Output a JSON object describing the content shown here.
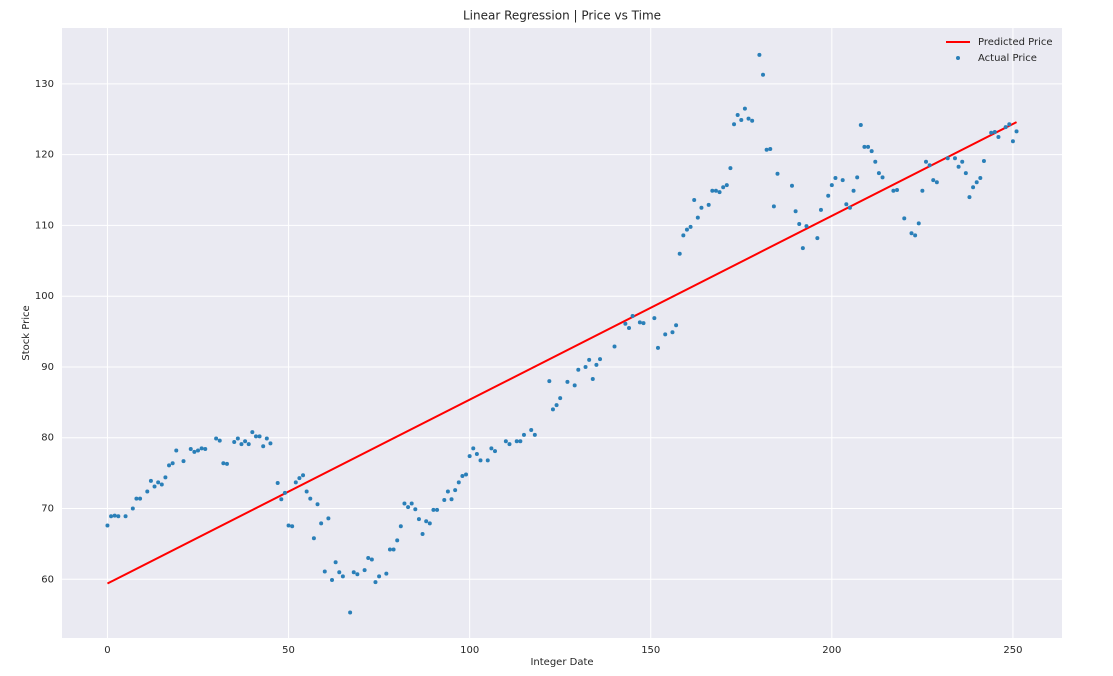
{
  "chart_data": {
    "type": "scatter",
    "title": "Linear Regression | Price vs Time",
    "x_label": "Integer Date",
    "y_label": "Stock Price",
    "xlim": [
      -12.55,
      263.55
    ],
    "ylim": [
      51.7,
      137.9
    ],
    "xticks": [
      0,
      50,
      100,
      150,
      200,
      250
    ],
    "yticks": [
      60,
      70,
      80,
      90,
      100,
      110,
      120,
      130
    ],
    "grid": true,
    "legend": "upper right",
    "series": [
      {
        "name": "Predicted Price",
        "type": "line",
        "color": "#ff0000",
        "x": [
          0,
          251
        ],
        "values": [
          59.4,
          124.6
        ]
      },
      {
        "name": "Actual Price",
        "type": "scatter",
        "color": "#2a7fb8",
        "x": [
          0,
          1,
          2,
          3,
          5,
          7,
          8,
          9,
          11,
          12,
          13,
          14,
          15,
          16,
          17,
          18,
          19,
          21,
          23,
          24,
          25,
          26,
          27,
          30,
          31,
          32,
          33,
          35,
          36,
          37,
          38,
          39,
          40,
          41,
          42,
          43,
          44,
          45,
          47,
          48,
          49,
          50,
          51,
          52,
          53,
          54,
          55,
          56,
          57,
          58,
          59,
          60,
          61,
          62,
          63,
          64,
          65,
          67,
          68,
          69,
          71,
          72,
          73,
          74,
          75,
          77,
          78,
          79,
          80,
          81,
          82,
          83,
          84,
          85,
          86,
          87,
          88,
          89,
          90,
          91,
          93,
          94,
          95,
          96,
          97,
          98,
          99,
          100,
          101,
          102,
          103,
          105,
          106,
          107,
          110,
          111,
          113,
          114,
          115,
          117,
          118,
          122,
          123,
          124,
          125,
          127,
          129,
          130,
          132,
          133,
          134,
          135,
          136,
          140,
          143,
          144,
          145,
          147,
          148,
          151,
          152,
          154,
          156,
          157,
          158,
          159,
          160,
          161,
          162,
          163,
          164,
          166,
          167,
          168,
          169,
          170,
          171,
          172,
          173,
          174,
          175,
          176,
          177,
          178,
          180,
          181,
          182,
          183,
          184,
          185,
          189,
          190,
          191,
          192,
          193,
          196,
          197,
          199,
          200,
          201,
          203,
          204,
          205,
          206,
          207,
          208,
          209,
          210,
          211,
          212,
          213,
          214,
          217,
          218,
          220,
          222,
          223,
          224,
          225,
          226,
          227,
          228,
          229,
          232,
          234,
          235,
          236,
          237,
          238,
          239,
          240,
          241,
          242,
          244,
          245,
          246,
          248,
          249,
          250,
          251
        ],
        "values": [
          67.6,
          68.9,
          69.0,
          68.9,
          68.9,
          70.0,
          71.4,
          71.4,
          72.4,
          73.9,
          73.1,
          73.7,
          73.4,
          74.4,
          76.1,
          76.4,
          78.2,
          76.7,
          78.4,
          78.0,
          78.2,
          78.5,
          78.4,
          79.9,
          79.6,
          76.4,
          76.3,
          79.4,
          79.9,
          79.1,
          79.5,
          79.1,
          80.8,
          80.2,
          80.2,
          78.8,
          79.9,
          79.2,
          73.6,
          71.3,
          72.2,
          67.6,
          67.5,
          73.7,
          74.3,
          74.7,
          72.4,
          71.4,
          65.8,
          70.6,
          67.9,
          61.1,
          68.6,
          59.9,
          62.4,
          61.0,
          60.4,
          55.3,
          61.0,
          60.7,
          61.3,
          63.0,
          62.8,
          59.6,
          60.4,
          60.8,
          64.2,
          64.2,
          65.5,
          67.5,
          70.7,
          70.2,
          70.7,
          69.9,
          68.5,
          66.4,
          68.2,
          67.9,
          69.8,
          69.8,
          71.2,
          72.4,
          71.3,
          72.6,
          73.7,
          74.6,
          74.8,
          77.4,
          78.5,
          77.7,
          76.8,
          76.8,
          78.5,
          78.1,
          79.5,
          79.1,
          79.5,
          79.5,
          80.4,
          81.1,
          80.4,
          88.0,
          84.0,
          84.6,
          85.6,
          87.9,
          87.4,
          89.6,
          90.0,
          91.0,
          88.3,
          90.3,
          91.1,
          92.9,
          96.1,
          95.5,
          97.2,
          96.3,
          96.2,
          96.9,
          92.7,
          94.6,
          94.9,
          95.9,
          106.0,
          108.6,
          109.4,
          109.8,
          113.6,
          111.1,
          112.5,
          112.9,
          114.9,
          114.9,
          114.7,
          115.4,
          115.7,
          118.1,
          124.3,
          125.6,
          124.9,
          126.5,
          125.1,
          124.8,
          134.1,
          131.3,
          120.7,
          120.8,
          112.7,
          117.3,
          115.6,
          112.0,
          110.2,
          106.8,
          109.9,
          108.2,
          112.2,
          114.2,
          115.7,
          116.7,
          116.4,
          113.0,
          112.5,
          114.9,
          116.8,
          124.2,
          121.1,
          121.1,
          120.5,
          119.0,
          117.4,
          116.8,
          114.9,
          115.0,
          111.0,
          108.9,
          108.6,
          110.3,
          114.9,
          119.0,
          118.5,
          116.4,
          116.1,
          119.5,
          119.5,
          118.3,
          119.0,
          117.4,
          114.0,
          115.4,
          116.1,
          116.7,
          119.1,
          123.1,
          123.2,
          122.5,
          123.9,
          124.3,
          121.9,
          123.3
        ]
      }
    ]
  }
}
